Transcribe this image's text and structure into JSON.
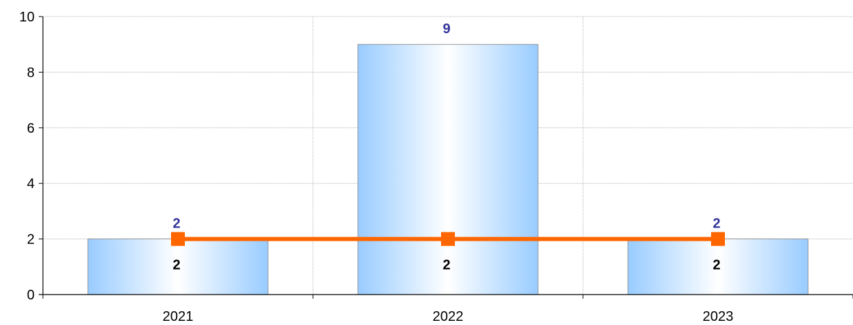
{
  "chart_data": {
    "type": "bar",
    "categories": [
      "2021",
      "2022",
      "2023"
    ],
    "series": [
      {
        "type": "bar",
        "values": [
          2,
          9,
          2
        ],
        "color": "#99ccff",
        "label_color": "#333399"
      },
      {
        "type": "line",
        "values": [
          2,
          2,
          2
        ],
        "color": "#ff6600",
        "label_color": "#000000"
      }
    ],
    "ylim": [
      0,
      10
    ],
    "yticks": [
      0,
      2,
      4,
      6,
      8,
      10
    ],
    "grid": true,
    "title": "",
    "xlabel": "",
    "ylabel": ""
  }
}
